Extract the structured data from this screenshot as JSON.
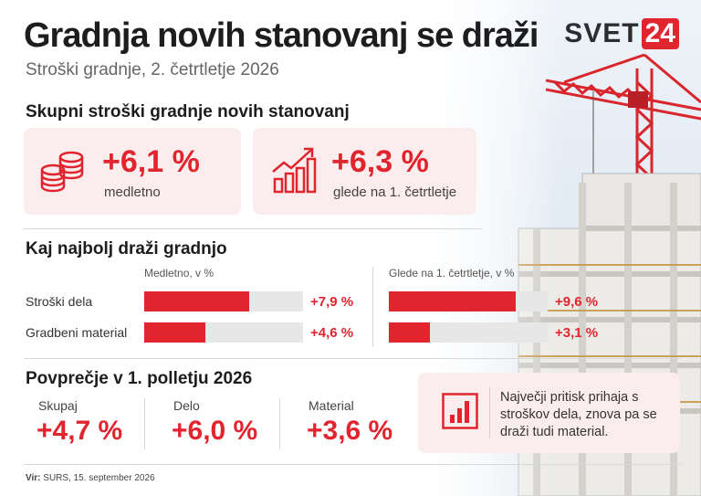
{
  "header": {
    "title": "Gradnja novih stanovanj se draži",
    "subtitle": "Stroški gradnje, 2. četrtletje 2026",
    "logo_text": "SVET",
    "logo_number": "24"
  },
  "colors": {
    "accent": "#e1252f",
    "card_bg": "#fbeced",
    "track": "#e7e7e7"
  },
  "total_costs": {
    "title": "Skupni stroški gradnje novih stanovanj",
    "cards": [
      {
        "icon": "coins-icon",
        "value": "+6,1 %",
        "label": "medletno"
      },
      {
        "icon": "growth-chart-icon",
        "value": "+6,3 %",
        "label": "glede na 1. četrtletje"
      }
    ]
  },
  "drivers": {
    "title": "Kaj najbolj draži gradnjo",
    "columns": [
      "Medletno, v %",
      "Glede na 1. četrtletje, v %"
    ],
    "rows": [
      {
        "label": "Stroški dela",
        "yoy_label": "+7,9 %",
        "qoq_label": "+9,6 %"
      },
      {
        "label": "Gradbeni material",
        "yoy_label": "+4,6 %",
        "qoq_label": "+3,1 %"
      }
    ]
  },
  "chart_data": {
    "type": "bar",
    "categories": [
      "Stroški dela",
      "Gradbeni material"
    ],
    "series": [
      {
        "name": "Medletno, v %",
        "values": [
          7.9,
          4.6
        ]
      },
      {
        "name": "Glede na 1. četrtletje, v %",
        "values": [
          9.6,
          3.1
        ]
      }
    ],
    "title": "Kaj najbolj draži gradnjo",
    "xlim": [
      0,
      12
    ]
  },
  "average": {
    "title": "Povprečje v 1. polletju 2026",
    "items": [
      {
        "label": "Skupaj",
        "value": "+4,7 %"
      },
      {
        "label": "Delo",
        "value": "+6,0 %"
      },
      {
        "label": "Material",
        "value": "+3,6 %"
      }
    ],
    "note_icon": "bar-chart-icon",
    "note": "Največji pritisk prihaja s stroškov dela, znova pa se draži tudi material."
  },
  "footer": {
    "source_label": "Vir:",
    "source_text": "SURS, 15. september 2026"
  }
}
